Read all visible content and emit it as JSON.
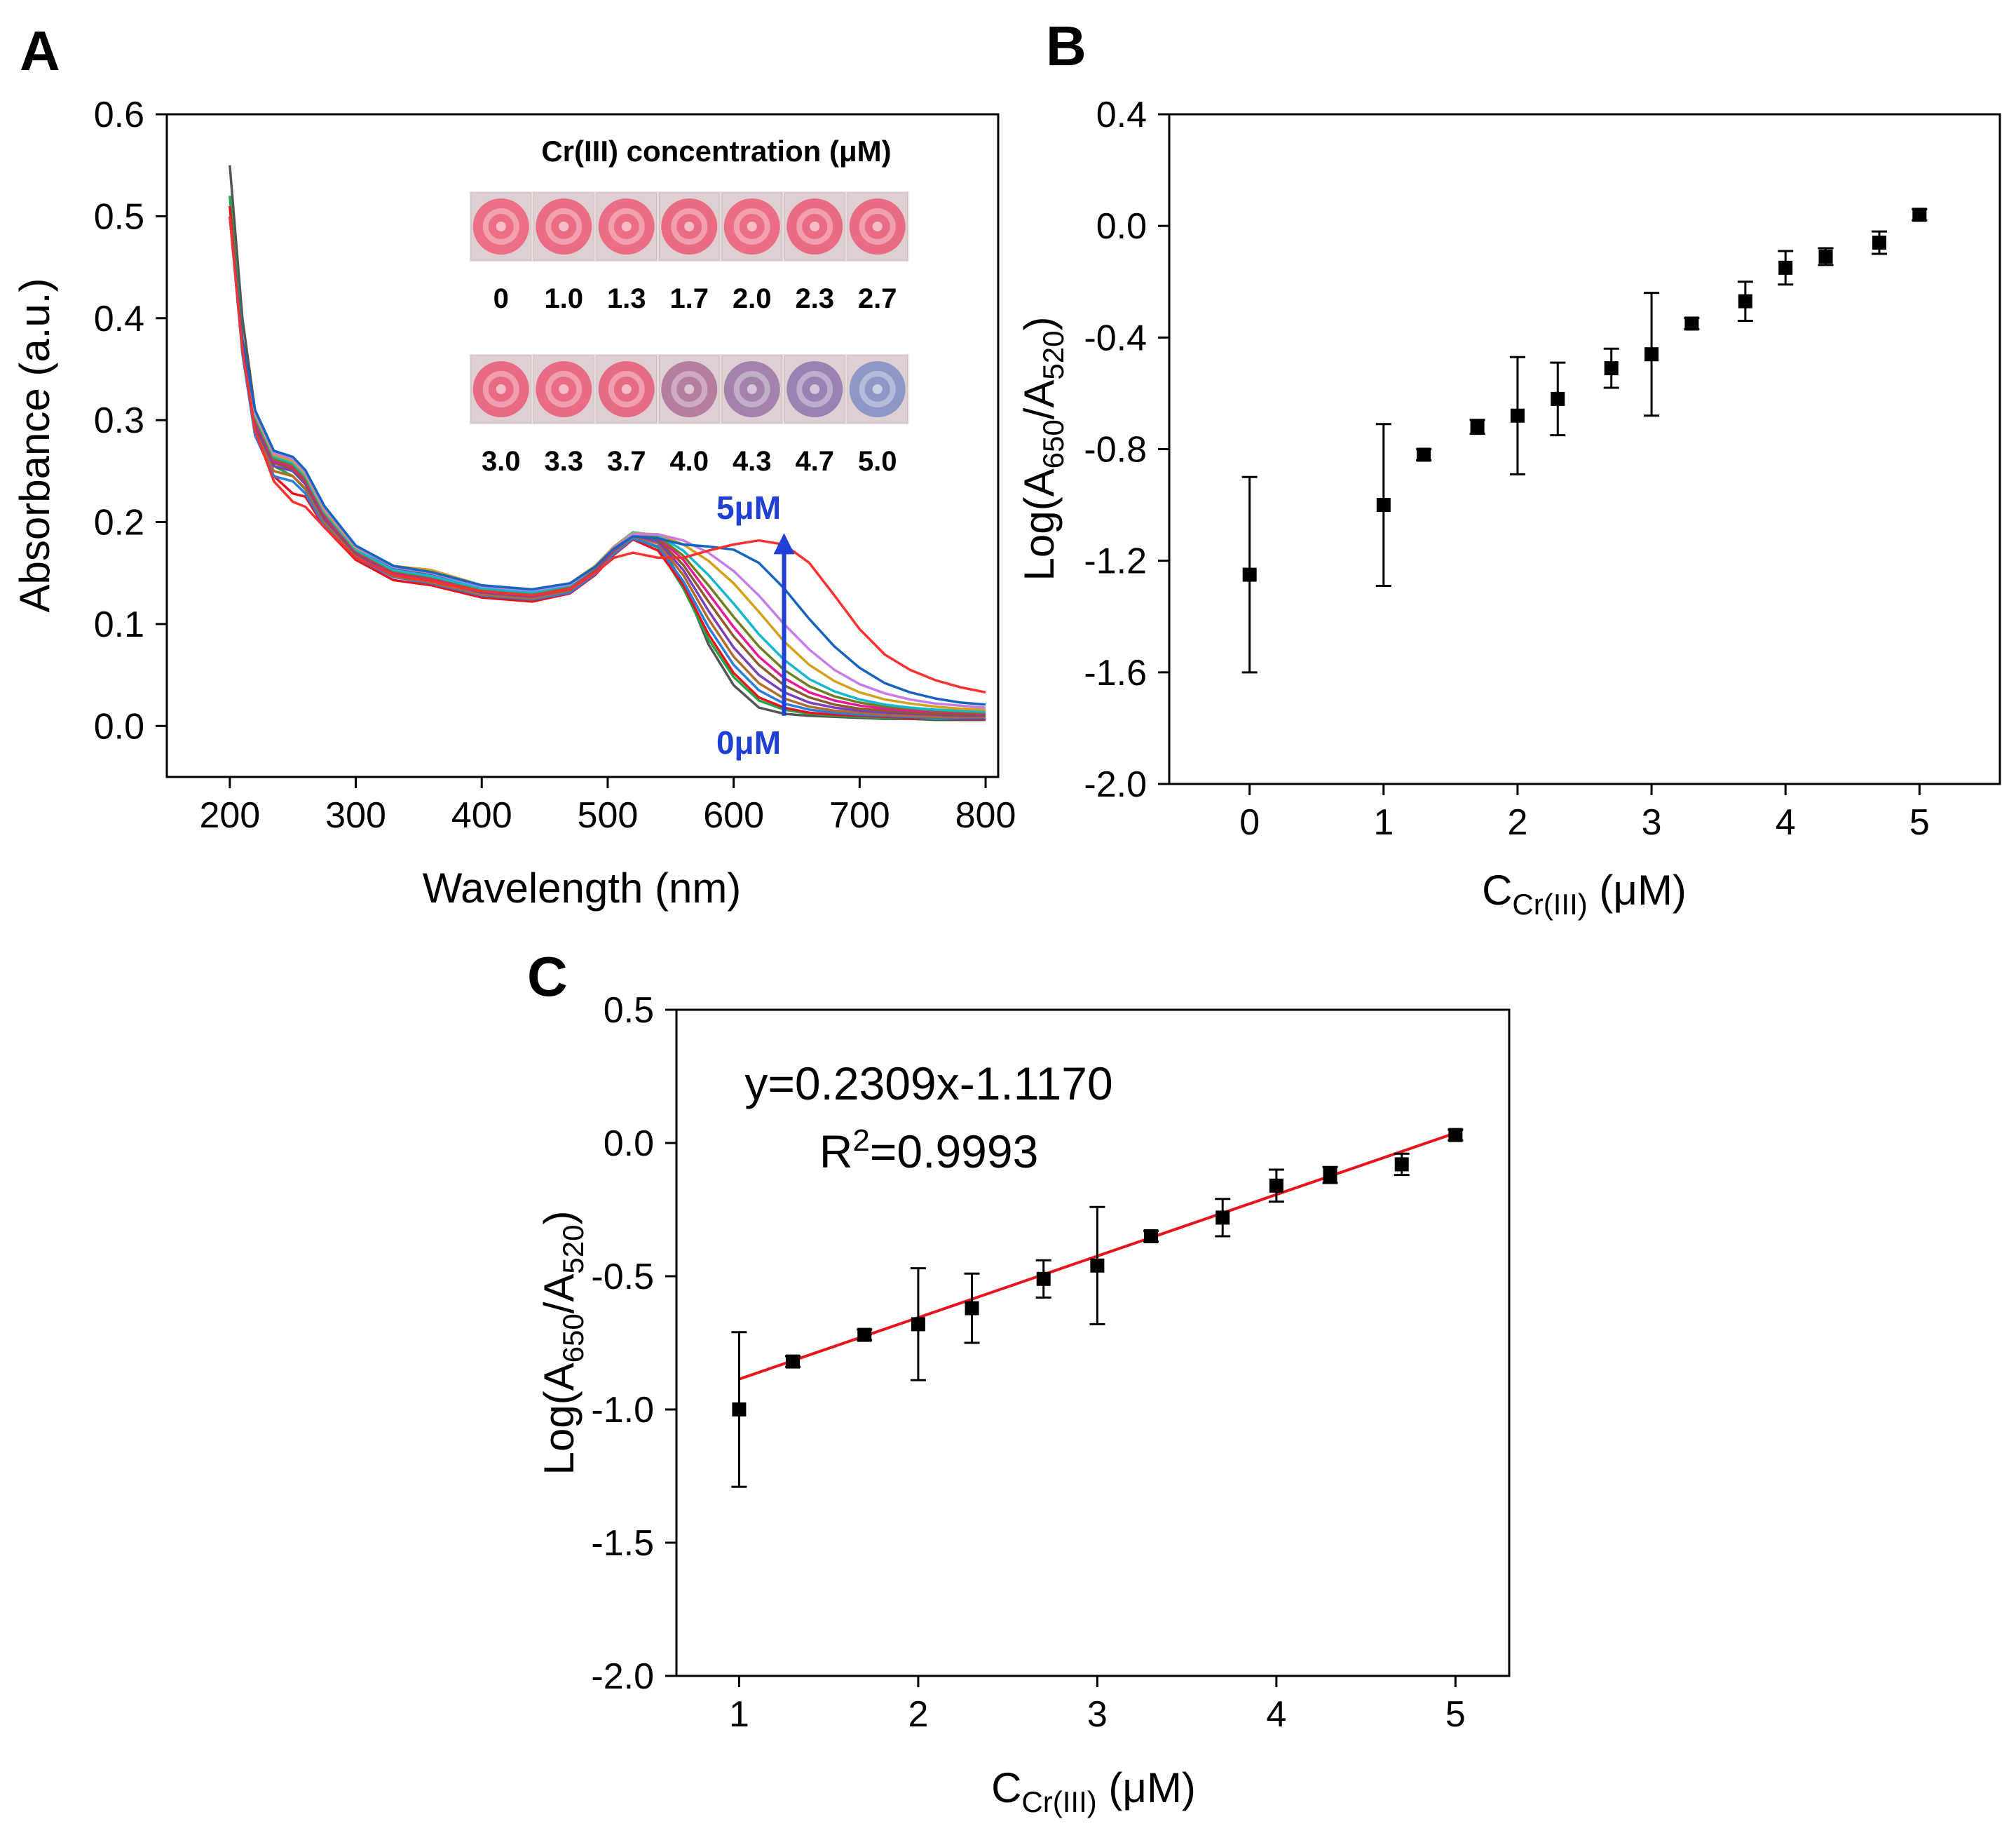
{
  "panels": {
    "A": {
      "letter": "A"
    },
    "B": {
      "letter": "B"
    },
    "C": {
      "letter": "C"
    }
  },
  "colors": {
    "axis": "#000000",
    "annotation_blue": "#1f3fd6",
    "fit_line": "#e8141b",
    "marker": "#000000",
    "well_pink": "#e86a82",
    "well_purple": "#9a86b2",
    "well_blue": "#8c94c4"
  },
  "inset": {
    "title": "Cr(III) concentration (μM)",
    "row1_labels": [
      "0",
      "1.0",
      "1.3",
      "1.7",
      "2.0",
      "2.3",
      "2.7"
    ],
    "row2_labels": [
      "3.0",
      "3.3",
      "3.7",
      "4.0",
      "4.3",
      "4.7",
      "5.0"
    ],
    "row1_colors": [
      "#ec6f85",
      "#ea6d84",
      "#eb6e85",
      "#ea6c83",
      "#eb6e85",
      "#ea6c84",
      "#e86c84"
    ],
    "row2_colors": [
      "#e96b83",
      "#e96c84",
      "#e66c86",
      "#b47f9e",
      "#a383ac",
      "#9a82b4",
      "#8f97c6"
    ]
  },
  "chart_data": [
    {
      "panel": "A",
      "type": "line",
      "title": "",
      "xlabel": "Wavelength (nm)",
      "ylabel": "Absorbance (a.u.)",
      "xlim": [
        150,
        810
      ],
      "ylim": [
        -0.05,
        0.6
      ],
      "xticks": [
        200,
        300,
        400,
        500,
        600,
        700,
        800
      ],
      "yticks": [
        0.0,
        0.1,
        0.2,
        0.3,
        0.4,
        0.5,
        0.6
      ],
      "xtick_labels": [
        "200",
        "300",
        "400",
        "500",
        "600",
        "700",
        "800"
      ],
      "ytick_labels": [
        "0.0",
        "0.1",
        "0.2",
        "0.3",
        "0.4",
        "0.5",
        "0.6"
      ],
      "annotations": {
        "top": "5μM",
        "bottom": "0μM",
        "arrow_x": 640,
        "arrow_y": [
          0.01,
          0.185
        ]
      },
      "x": [
        200,
        210,
        220,
        235,
        250,
        260,
        275,
        300,
        330,
        360,
        400,
        440,
        470,
        490,
        505,
        520,
        540,
        560,
        580,
        600,
        620,
        640,
        660,
        680,
        700,
        720,
        740,
        760,
        780,
        800
      ],
      "series": [
        {
          "name": "0 μM",
          "color": "#555555",
          "values": [
            0.55,
            0.4,
            0.31,
            0.26,
            0.255,
            0.24,
            0.205,
            0.175,
            0.155,
            0.148,
            0.138,
            0.132,
            0.138,
            0.155,
            0.175,
            0.19,
            0.18,
            0.14,
            0.08,
            0.04,
            0.018,
            0.012,
            0.01,
            0.009,
            0.008,
            0.007,
            0.007,
            0.006,
            0.006,
            0.006
          ]
        },
        {
          "name": "1.0 μM",
          "color": "#1fa84a",
          "values": [
            0.52,
            0.38,
            0.3,
            0.255,
            0.245,
            0.232,
            0.2,
            0.168,
            0.148,
            0.142,
            0.13,
            0.125,
            0.132,
            0.15,
            0.17,
            0.185,
            0.175,
            0.135,
            0.085,
            0.048,
            0.025,
            0.016,
            0.012,
            0.01,
            0.009,
            0.008,
            0.008,
            0.007,
            0.007,
            0.007
          ]
        },
        {
          "name": "1.3 μM",
          "color": "#e8141b",
          "values": [
            0.51,
            0.37,
            0.29,
            0.245,
            0.228,
            0.225,
            0.195,
            0.163,
            0.143,
            0.138,
            0.126,
            0.122,
            0.13,
            0.148,
            0.168,
            0.183,
            0.172,
            0.138,
            0.09,
            0.052,
            0.028,
            0.018,
            0.013,
            0.011,
            0.01,
            0.009,
            0.008,
            0.008,
            0.007,
            0.007
          ]
        },
        {
          "name": "1.7 μM",
          "color": "#2a7de1",
          "values": [
            0.5,
            0.365,
            0.285,
            0.245,
            0.24,
            0.228,
            0.197,
            0.165,
            0.146,
            0.14,
            0.128,
            0.124,
            0.131,
            0.149,
            0.169,
            0.184,
            0.176,
            0.142,
            0.097,
            0.06,
            0.035,
            0.022,
            0.016,
            0.013,
            0.011,
            0.01,
            0.009,
            0.008,
            0.008,
            0.008
          ]
        },
        {
          "name": "2.0 μM",
          "color": "#b36b2b",
          "values": [
            0.5,
            0.37,
            0.29,
            0.25,
            0.245,
            0.233,
            0.2,
            0.167,
            0.147,
            0.141,
            0.129,
            0.125,
            0.133,
            0.151,
            0.171,
            0.186,
            0.179,
            0.148,
            0.105,
            0.068,
            0.042,
            0.027,
            0.019,
            0.015,
            0.013,
            0.011,
            0.01,
            0.009,
            0.009,
            0.009
          ]
        },
        {
          "name": "2.3 μM",
          "color": "#7a3fbf",
          "values": [
            0.5,
            0.37,
            0.295,
            0.255,
            0.25,
            0.237,
            0.203,
            0.169,
            0.149,
            0.143,
            0.131,
            0.127,
            0.134,
            0.152,
            0.172,
            0.187,
            0.181,
            0.153,
            0.113,
            0.077,
            0.05,
            0.033,
            0.023,
            0.018,
            0.015,
            0.013,
            0.012,
            0.011,
            0.01,
            0.01
          ]
        },
        {
          "name": "2.7 μM",
          "color": "#8b5a2b",
          "values": [
            0.5,
            0.372,
            0.298,
            0.258,
            0.252,
            0.239,
            0.205,
            0.17,
            0.15,
            0.144,
            0.132,
            0.128,
            0.135,
            0.153,
            0.173,
            0.188,
            0.183,
            0.158,
            0.122,
            0.088,
            0.06,
            0.04,
            0.028,
            0.021,
            0.017,
            0.015,
            0.013,
            0.012,
            0.011,
            0.011
          ]
        },
        {
          "name": "3.0 μM",
          "color": "#e6199a",
          "values": [
            0.5,
            0.374,
            0.3,
            0.26,
            0.254,
            0.241,
            0.207,
            0.171,
            0.151,
            0.145,
            0.133,
            0.129,
            0.136,
            0.154,
            0.174,
            0.188,
            0.185,
            0.163,
            0.13,
            0.097,
            0.068,
            0.047,
            0.033,
            0.025,
            0.02,
            0.017,
            0.015,
            0.014,
            0.013,
            0.012
          ]
        },
        {
          "name": "3.3 μM",
          "color": "#6e7f1f",
          "values": [
            0.5,
            0.375,
            0.302,
            0.262,
            0.256,
            0.243,
            0.209,
            0.172,
            0.152,
            0.146,
            0.134,
            0.13,
            0.137,
            0.155,
            0.175,
            0.189,
            0.186,
            0.167,
            0.138,
            0.107,
            0.078,
            0.055,
            0.039,
            0.029,
            0.023,
            0.019,
            0.017,
            0.015,
            0.014,
            0.013
          ]
        },
        {
          "name": "3.7 μM",
          "color": "#17b6d0",
          "values": [
            0.5,
            0.376,
            0.304,
            0.264,
            0.258,
            0.245,
            0.21,
            0.173,
            0.153,
            0.147,
            0.135,
            0.131,
            0.138,
            0.156,
            0.176,
            0.19,
            0.187,
            0.172,
            0.148,
            0.12,
            0.09,
            0.065,
            0.046,
            0.034,
            0.026,
            0.021,
            0.018,
            0.016,
            0.015,
            0.014
          ]
        },
        {
          "name": "4.0 μM",
          "color": "#d4a01a",
          "values": [
            0.5,
            0.377,
            0.306,
            0.266,
            0.26,
            0.247,
            0.212,
            0.175,
            0.157,
            0.153,
            0.138,
            0.134,
            0.14,
            0.157,
            0.176,
            0.189,
            0.188,
            0.178,
            0.162,
            0.14,
            0.112,
            0.083,
            0.06,
            0.044,
            0.033,
            0.026,
            0.022,
            0.019,
            0.017,
            0.016
          ]
        },
        {
          "name": "4.3 μM",
          "color": "#c77de8",
          "values": [
            0.5,
            0.378,
            0.308,
            0.268,
            0.262,
            0.249,
            0.214,
            0.176,
            0.156,
            0.15,
            0.137,
            0.133,
            0.139,
            0.156,
            0.175,
            0.188,
            0.188,
            0.182,
            0.17,
            0.152,
            0.128,
            0.1,
            0.075,
            0.055,
            0.041,
            0.032,
            0.026,
            0.022,
            0.02,
            0.018
          ]
        },
        {
          "name": "4.7 μM",
          "color": "#1565c0",
          "values": [
            0.5,
            0.379,
            0.31,
            0.27,
            0.264,
            0.251,
            0.216,
            0.177,
            0.157,
            0.151,
            0.138,
            0.134,
            0.14,
            0.156,
            0.174,
            0.186,
            0.184,
            0.178,
            0.176,
            0.173,
            0.16,
            0.135,
            0.105,
            0.078,
            0.057,
            0.042,
            0.033,
            0.027,
            0.023,
            0.021
          ]
        },
        {
          "name": "5.0 μM",
          "color": "#ff3030",
          "values": [
            0.5,
            0.37,
            0.29,
            0.24,
            0.22,
            0.215,
            0.195,
            0.165,
            0.148,
            0.142,
            0.132,
            0.128,
            0.134,
            0.15,
            0.165,
            0.17,
            0.165,
            0.165,
            0.172,
            0.178,
            0.182,
            0.178,
            0.16,
            0.128,
            0.095,
            0.07,
            0.055,
            0.045,
            0.038,
            0.033
          ]
        }
      ]
    },
    {
      "panel": "B",
      "type": "scatter",
      "title": "",
      "xlabel_main": "C",
      "xlabel_sub": "Cr(III)",
      "xlabel_unit": " (μM)",
      "ylabel_main": "Log(A",
      "ylabel_sub1": "650",
      "ylabel_mid": "/A",
      "ylabel_sub2": "520",
      "ylabel_end": ")",
      "xlim": [
        -0.6,
        5.6
      ],
      "ylim": [
        -2.0,
        0.4
      ],
      "xticks": [
        0,
        1,
        2,
        3,
        4,
        5
      ],
      "yticks": [
        -2.0,
        -1.6,
        -1.2,
        -0.8,
        -0.4,
        0.0,
        0.4
      ],
      "xtick_labels": [
        "0",
        "1",
        "2",
        "3",
        "4",
        "5"
      ],
      "ytick_labels": [
        "-2.0",
        "-1.6",
        "-1.2",
        "-0.8",
        "-0.4",
        "0.0",
        "0.4"
      ],
      "x": [
        0,
        1.0,
        1.3,
        1.7,
        2.0,
        2.3,
        2.7,
        3.0,
        3.3,
        3.7,
        4.0,
        4.3,
        4.7,
        5.0
      ],
      "y": [
        -1.25,
        -1.0,
        -0.82,
        -0.72,
        -0.68,
        -0.62,
        -0.51,
        -0.46,
        -0.35,
        -0.27,
        -0.15,
        -0.11,
        -0.06,
        0.04
      ],
      "err": [
        0.35,
        0.29,
        0.02,
        0.025,
        0.21,
        0.13,
        0.07,
        0.22,
        0.02,
        0.07,
        0.06,
        0.03,
        0.04,
        0.02
      ]
    },
    {
      "panel": "C",
      "type": "scatter",
      "title": "",
      "xlabel_main": "C",
      "xlabel_sub": "Cr(III)",
      "xlabel_unit": " (μM)",
      "ylabel_main": "Log(A",
      "ylabel_sub1": "650",
      "ylabel_mid": "/A",
      "ylabel_sub2": "520",
      "ylabel_end": ")",
      "xlim": [
        0.65,
        5.3
      ],
      "ylim": [
        -2.0,
        0.5
      ],
      "xticks": [
        1,
        2,
        3,
        4,
        5
      ],
      "yticks": [
        -2.0,
        -1.5,
        -1.0,
        -0.5,
        0.0,
        0.5
      ],
      "xtick_labels": [
        "1",
        "2",
        "3",
        "4",
        "5"
      ],
      "ytick_labels": [
        "-2.0",
        "-1.5",
        "-1.0",
        "-0.5",
        "0.0",
        "0.5"
      ],
      "equation": "y=0.2309x-1.1170",
      "r2_main": "R",
      "r2_sup": "2",
      "r2_value": "=0.9993",
      "fit": {
        "slope": 0.2309,
        "intercept": -1.117,
        "x_range": [
          1.0,
          5.0
        ]
      },
      "x": [
        1.0,
        1.3,
        1.7,
        2.0,
        2.3,
        2.7,
        3.0,
        3.3,
        3.7,
        4.0,
        4.3,
        4.7,
        5.0
      ],
      "y": [
        -1.0,
        -0.82,
        -0.72,
        -0.68,
        -0.62,
        -0.51,
        -0.46,
        -0.35,
        -0.28,
        -0.16,
        -0.12,
        -0.08,
        0.03
      ],
      "err": [
        0.29,
        0.02,
        0.02,
        0.21,
        0.13,
        0.07,
        0.22,
        0.02,
        0.07,
        0.06,
        0.03,
        0.04,
        0.02
      ]
    }
  ]
}
